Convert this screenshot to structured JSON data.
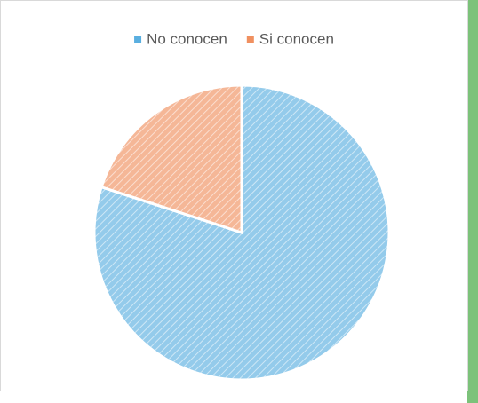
{
  "chart_data": {
    "type": "pie",
    "categories": [
      "No conocen",
      "Si conocen"
    ],
    "values": [
      80,
      20
    ],
    "colors": [
      "#5aafe0",
      "#f09060"
    ],
    "legend": "top"
  }
}
